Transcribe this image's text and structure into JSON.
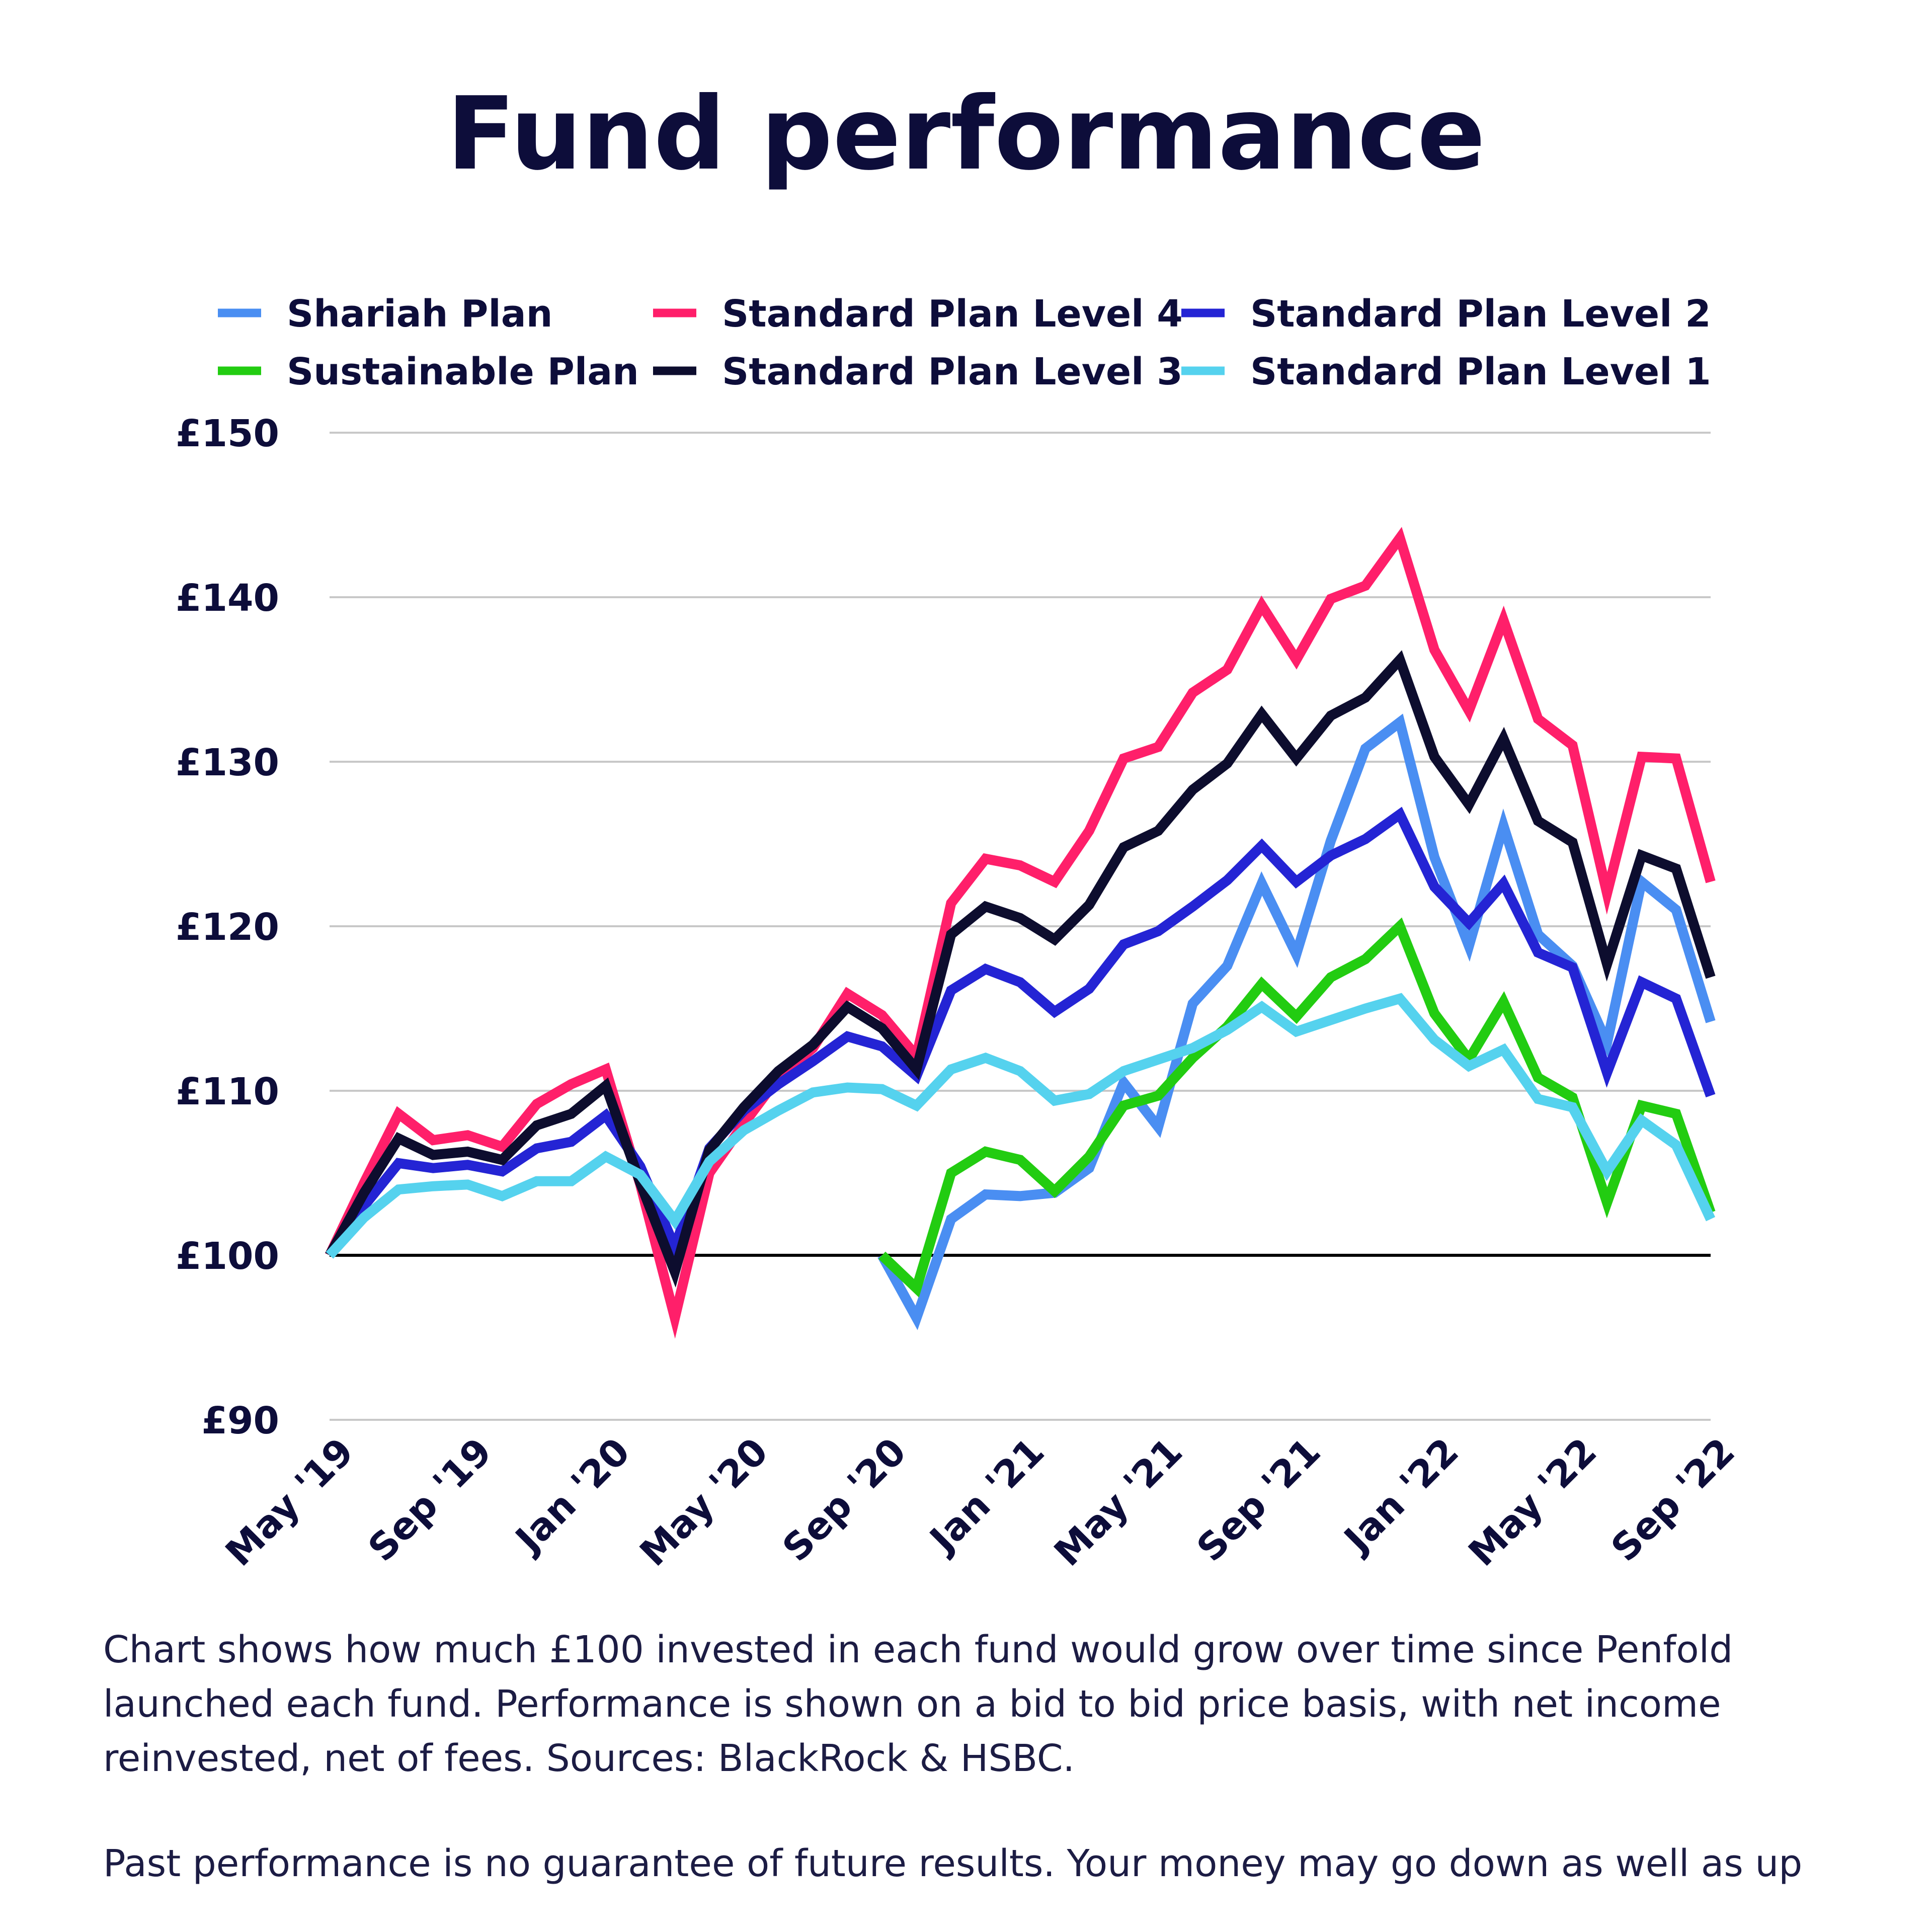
{
  "caption": {
    "line1": "Chart shows how much £100 invested in each fund would grow over time since Penfold launched each fund. Performance is shown on a bid to bid price basis, with net income reinvested, net of fees. Sources: BlackRock & HSBC.",
    "line2": "Past performance is no guarantee of future results. Your money may go down as well as up"
  },
  "chart_data": {
    "type": "line",
    "title": "Fund performance",
    "xlabel": "",
    "ylabel": "",
    "ylim": [
      90,
      150
    ],
    "yticks": [
      90,
      100,
      110,
      120,
      130,
      140,
      150
    ],
    "ytick_labels": [
      "£90",
      "£100",
      "£110",
      "£120",
      "£130",
      "£140",
      "£150"
    ],
    "x_start": "May '19",
    "x_end": "Sep '22",
    "x_count": 41,
    "xtick_labels": [
      "May '19",
      "Sep '19",
      "Jan '20",
      "May '20",
      "Sep '20",
      "Jan '21",
      "May '21",
      "Sep '21",
      "Jan '22",
      "May '22",
      "Sep '22"
    ],
    "xtick_index": [
      0,
      4,
      8,
      12,
      16,
      20,
      24,
      28,
      32,
      36,
      40
    ],
    "baseline": 100,
    "grid": true,
    "legend_position": "top",
    "series": [
      {
        "name": "Shariah Plan",
        "color": "#4a8ef2",
        "start_index": 16,
        "values": [
          100.0,
          96.2,
          102.2,
          103.7,
          103.6,
          103.8,
          105.3,
          110.5,
          107.8,
          115.3,
          117.6,
          122.6,
          118.3,
          125.2,
          130.8,
          132.4,
          124.2,
          118.8,
          126.1,
          119.5,
          117.6,
          112.9,
          122.7,
          121.0,
          114.2
        ]
      },
      {
        "name": "Standard Plan Level 4",
        "color": "#ff1f6a",
        "start_index": 0,
        "values": [
          100.0,
          104.4,
          108.6,
          107.0,
          107.3,
          106.6,
          109.2,
          110.4,
          111.3,
          104.3,
          96.2,
          105.0,
          108.0,
          110.8,
          112.6,
          115.9,
          114.6,
          112.1,
          121.4,
          124.1,
          123.7,
          122.7,
          125.8,
          130.2,
          130.9,
          134.2,
          135.6,
          139.5,
          136.2,
          139.9,
          140.7,
          143.6,
          136.8,
          133.1,
          138.6,
          132.6,
          131.0,
          122.0,
          130.3,
          130.2,
          122.7
        ]
      },
      {
        "name": "Standard Plan Level 2",
        "color": "#2424d4",
        "start_index": 0,
        "values": [
          100.0,
          103.0,
          105.6,
          105.3,
          105.5,
          105.1,
          106.5,
          106.9,
          108.5,
          105.4,
          100.5,
          106.5,
          108.8,
          110.4,
          111.8,
          113.3,
          112.7,
          110.9,
          116.1,
          117.4,
          116.6,
          114.8,
          116.2,
          118.9,
          119.7,
          121.2,
          122.8,
          124.9,
          122.7,
          124.3,
          125.3,
          126.8,
          122.4,
          120.2,
          122.6,
          118.4,
          117.5,
          111.1,
          116.6,
          115.6,
          109.7
        ]
      },
      {
        "name": "Sustainable Plan",
        "color": "#22cc11",
        "start_index": 16,
        "values": [
          100.0,
          98.0,
          105.0,
          106.3,
          105.8,
          103.9,
          106.0,
          109.1,
          109.7,
          112.0,
          113.9,
          116.5,
          114.5,
          116.9,
          118.0,
          120.0,
          114.7,
          111.9,
          115.4,
          110.8,
          109.6,
          103.2,
          109.1,
          108.6,
          102.6
        ]
      },
      {
        "name": "Standard Plan Level 3",
        "color": "#0d0d2e",
        "start_index": 0,
        "values": [
          100.0,
          103.8,
          107.1,
          106.1,
          106.3,
          105.8,
          107.9,
          108.6,
          110.3,
          104.4,
          99.0,
          106.4,
          109.0,
          111.2,
          112.8,
          115.1,
          113.8,
          111.3,
          119.5,
          121.2,
          120.5,
          119.2,
          121.3,
          124.8,
          125.8,
          128.3,
          129.9,
          132.9,
          130.2,
          132.8,
          133.9,
          136.2,
          130.3,
          127.4,
          131.4,
          126.4,
          125.1,
          117.7,
          124.3,
          123.5,
          116.9
        ]
      },
      {
        "name": "Standard Plan Level 1",
        "color": "#55d2ee",
        "start_index": 0,
        "values": [
          100.0,
          102.3,
          104.0,
          104.2,
          104.3,
          103.6,
          104.5,
          104.5,
          106.0,
          104.9,
          102.1,
          105.7,
          107.6,
          108.8,
          109.9,
          110.2,
          110.1,
          109.1,
          111.3,
          112.0,
          111.2,
          109.4,
          109.8,
          111.2,
          111.9,
          112.6,
          113.7,
          115.1,
          113.6,
          114.3,
          115.0,
          115.6,
          113.1,
          111.5,
          112.5,
          109.5,
          109.0,
          105.1,
          108.2,
          106.7,
          102.2
        ]
      }
    ]
  }
}
